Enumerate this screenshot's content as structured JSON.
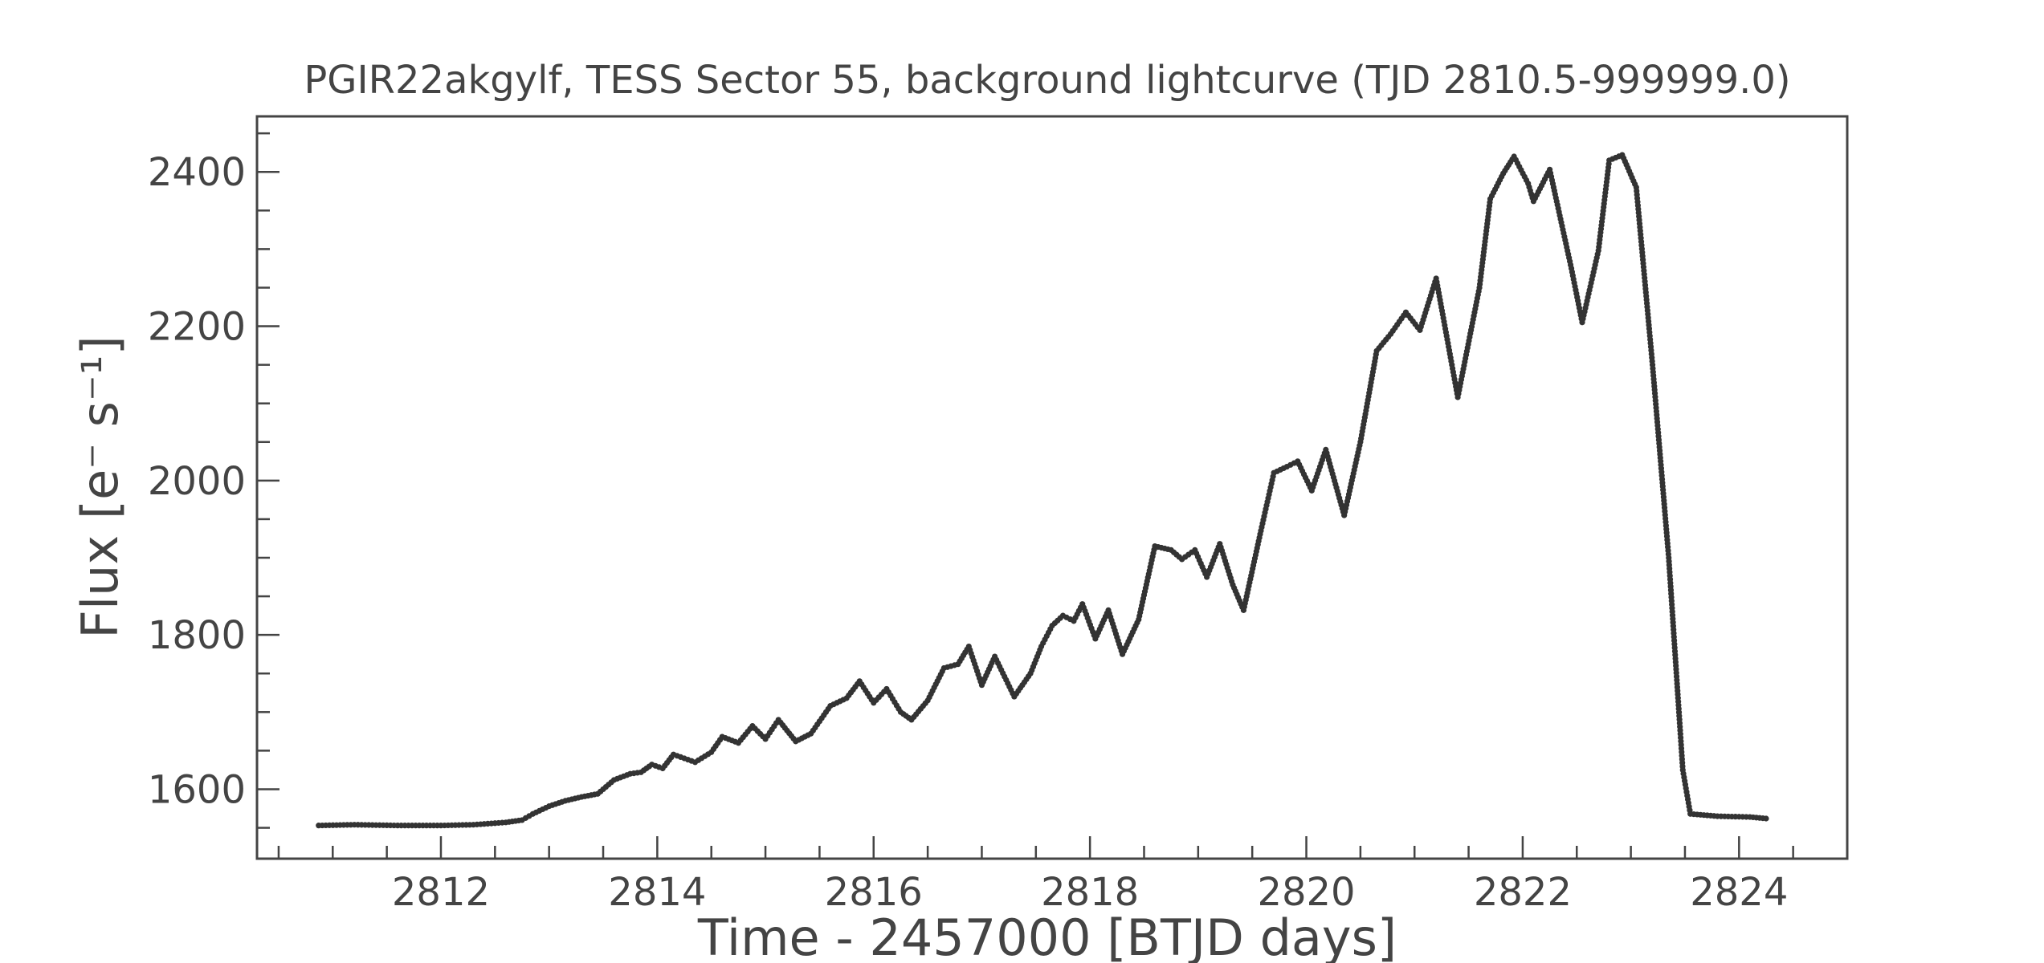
{
  "chart_data": {
    "type": "scatter",
    "title": "PGIR22akgylf, TESS Sector 55, background lightcurve (TJD 2810.5-999999.0)",
    "xlabel": "Time - 2457000 [BTJD days]",
    "ylabel": "Flux [e⁻ s⁻¹]",
    "xlim": [
      2810.3,
      2825.0
    ],
    "ylim": [
      1510,
      2472
    ],
    "x_ticks": [
      2812,
      2814,
      2816,
      2818,
      2820,
      2822,
      2824
    ],
    "x_tick_labels": [
      "2812",
      "2814",
      "2816",
      "2818",
      "2820",
      "2822",
      "2824"
    ],
    "y_ticks": [
      1600,
      1800,
      2000,
      2200,
      2400
    ],
    "y_tick_labels": [
      "1600",
      "1800",
      "2000",
      "2200",
      "2400"
    ],
    "grid": false,
    "marker_color": "#333333",
    "series": [
      {
        "points": [
          [
            2810.87,
            1553
          ],
          [
            2811.2,
            1554
          ],
          [
            2811.6,
            1553
          ],
          [
            2812.0,
            1553
          ],
          [
            2812.3,
            1554
          ],
          [
            2812.6,
            1557
          ],
          [
            2812.75,
            1560
          ],
          [
            2812.85,
            1568
          ],
          [
            2813.0,
            1578
          ],
          [
            2813.15,
            1585
          ],
          [
            2813.3,
            1590
          ],
          [
            2813.45,
            1594
          ],
          [
            2813.6,
            1612
          ],
          [
            2813.75,
            1620
          ],
          [
            2813.85,
            1622
          ],
          [
            2813.95,
            1632
          ],
          [
            2814.05,
            1627
          ],
          [
            2814.15,
            1645
          ],
          [
            2814.25,
            1640
          ],
          [
            2814.35,
            1635
          ],
          [
            2814.5,
            1648
          ],
          [
            2814.6,
            1668
          ],
          [
            2814.75,
            1660
          ],
          [
            2814.88,
            1682
          ],
          [
            2815.0,
            1665
          ],
          [
            2815.12,
            1690
          ],
          [
            2815.28,
            1662
          ],
          [
            2815.42,
            1672
          ],
          [
            2815.6,
            1708
          ],
          [
            2815.75,
            1718
          ],
          [
            2815.87,
            1740
          ],
          [
            2816.0,
            1712
          ],
          [
            2816.12,
            1730
          ],
          [
            2816.25,
            1700
          ],
          [
            2816.35,
            1690
          ],
          [
            2816.5,
            1715
          ],
          [
            2816.65,
            1757
          ],
          [
            2816.78,
            1762
          ],
          [
            2816.88,
            1785
          ],
          [
            2817.0,
            1735
          ],
          [
            2817.12,
            1772
          ],
          [
            2817.3,
            1720
          ],
          [
            2817.45,
            1750
          ],
          [
            2817.55,
            1785
          ],
          [
            2817.65,
            1812
          ],
          [
            2817.75,
            1825
          ],
          [
            2817.85,
            1818
          ],
          [
            2817.93,
            1840
          ],
          [
            2818.05,
            1795
          ],
          [
            2818.17,
            1832
          ],
          [
            2818.3,
            1775
          ],
          [
            2818.45,
            1820
          ],
          [
            2818.6,
            1915
          ],
          [
            2818.75,
            1910
          ],
          [
            2818.85,
            1898
          ],
          [
            2818.97,
            1910
          ],
          [
            2819.08,
            1875
          ],
          [
            2819.2,
            1918
          ],
          [
            2819.32,
            1865
          ],
          [
            2819.42,
            1832
          ],
          [
            2819.58,
            1935
          ],
          [
            2819.7,
            2010
          ],
          [
            2819.82,
            2018
          ],
          [
            2819.92,
            2025
          ],
          [
            2820.05,
            1987
          ],
          [
            2820.18,
            2040
          ],
          [
            2820.35,
            1955
          ],
          [
            2820.5,
            2050
          ],
          [
            2820.65,
            2168
          ],
          [
            2820.78,
            2190
          ],
          [
            2820.92,
            2218
          ],
          [
            2821.05,
            2195
          ],
          [
            2821.2,
            2262
          ],
          [
            2821.4,
            2108
          ],
          [
            2821.6,
            2250
          ],
          [
            2821.7,
            2365
          ],
          [
            2821.82,
            2398
          ],
          [
            2821.92,
            2420
          ],
          [
            2822.05,
            2385
          ],
          [
            2822.1,
            2362
          ],
          [
            2822.25,
            2403
          ],
          [
            2822.45,
            2275
          ],
          [
            2822.55,
            2205
          ],
          [
            2822.7,
            2298
          ],
          [
            2822.8,
            2415
          ],
          [
            2822.92,
            2422
          ],
          [
            2823.05,
            2380
          ],
          [
            2823.2,
            2150
          ],
          [
            2823.35,
            1900
          ],
          [
            2823.48,
            1625
          ],
          [
            2823.55,
            1568
          ],
          [
            2823.8,
            1565
          ],
          [
            2824.1,
            1564
          ],
          [
            2824.25,
            1562
          ]
        ]
      }
    ]
  }
}
